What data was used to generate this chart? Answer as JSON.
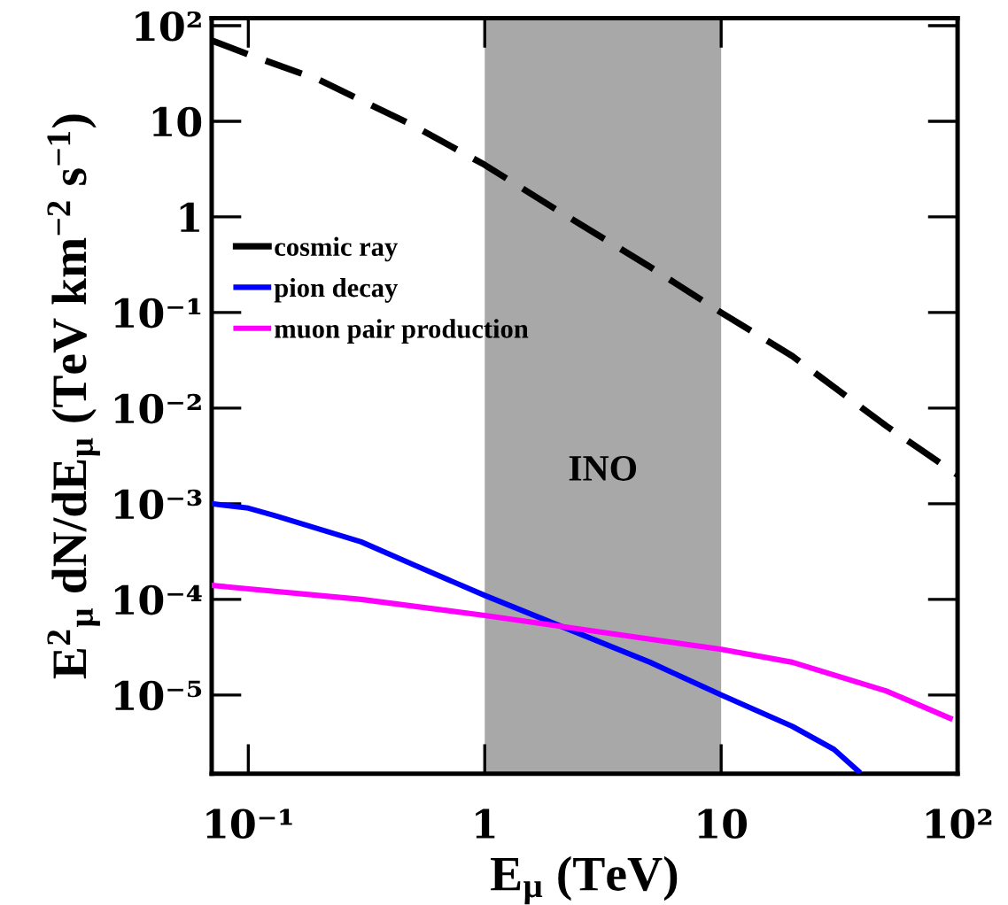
{
  "chart_data": {
    "type": "line",
    "xlabel": "E$_{μ}$ (TeV)",
    "ylabel": "E$^{2}$$_{μ}$ dN/dE$_{μ}$ (TeV km$^{−2}$ s$^{−1}$)",
    "log": "xy",
    "xlim": [
      0.07,
      100
    ],
    "ylim": [
      1.5e-06,
      120
    ],
    "xticks": [
      {
        "value": 0.1,
        "label": "10⁻¹"
      },
      1,
      10,
      {
        "value": 100,
        "label": "10²"
      }
    ],
    "yticks": [
      {
        "value": 1e-05,
        "label": "10⁻⁵"
      },
      {
        "value": 0.0001,
        "label": "10⁻⁴"
      },
      {
        "value": 0.001,
        "label": "10⁻³"
      },
      {
        "value": 0.01,
        "label": "10⁻²"
      },
      {
        "value": 0.1,
        "label": "10⁻¹"
      },
      1,
      10,
      {
        "value": 100,
        "label": "10²"
      }
    ],
    "grid": false,
    "legend": "left",
    "marker": "none",
    "bands": [
      {
        "axis": "x",
        "from": 1,
        "to": 10,
        "label": "INO",
        "color": "#a8a8a8"
      }
    ],
    "series": [
      {
        "name": "cosmic ray",
        "color": "#000000",
        "line_style": "dashed",
        "x": [
          0.07,
          0.1,
          0.2,
          0.5,
          1,
          2,
          5,
          10,
          20,
          50,
          100
        ],
        "values": [
          70,
          50,
          27,
          9,
          3.5,
          1.2,
          0.3,
          0.1,
          0.035,
          0.0065,
          0.002
        ]
      },
      {
        "name": "pion decay",
        "color": "#0000ff",
        "line_style": "solid",
        "x": [
          0.07,
          0.1,
          0.13,
          0.3,
          0.5,
          1,
          2,
          5,
          10,
          20,
          30,
          38
        ],
        "values": [
          0.001,
          0.0009,
          0.00075,
          0.0004,
          0.00023,
          0.00011,
          5.5e-05,
          2.2e-05,
          1e-05,
          4.7e-06,
          2.7e-06,
          1.6e-06
        ]
      },
      {
        "name": "muon pair production",
        "color": "#ff00ff",
        "line_style": "solid",
        "x": [
          0.07,
          0.3,
          1,
          3,
          10,
          20,
          50,
          93
        ],
        "values": [
          0.00014,
          0.0001,
          6.8e-05,
          4.6e-05,
          3e-05,
          2.2e-05,
          1.1e-05,
          5.7e-06
        ]
      }
    ]
  }
}
